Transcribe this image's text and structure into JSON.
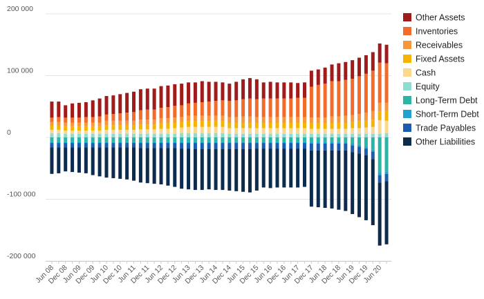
{
  "chart_data": {
    "type": "bar",
    "stacked": true,
    "title": "",
    "xlabel": "",
    "ylabel": "",
    "ylim": [
      -200000,
      200000
    ],
    "yticks": [
      200000,
      100000,
      0,
      -100000,
      -200000
    ],
    "ytick_labels": [
      "200 000",
      "100 000",
      "0",
      "-100 000",
      "-200 000"
    ],
    "grid": "horizontal",
    "legend_position": "right",
    "xtick_labels": [
      "Jun 08",
      "Dec 08",
      "Jun 09",
      "Dec 09",
      "Jun 10",
      "Dec 10",
      "Jun 11",
      "Dec 11",
      "Jun 12",
      "Dec 12",
      "Jun 13",
      "Dec 13",
      "Jun 14",
      "Dec 14",
      "Jun 15",
      "Dec 15",
      "Jun 16",
      "Dec 16",
      "Jun 17",
      "Dec 17",
      "Jun 18",
      "Dec 18",
      "Jun 19",
      "Dec 19",
      "Jun 20"
    ],
    "categories": [
      "Jun 08",
      "Sep 08",
      "Dec 08",
      "Mar 09",
      "Jun 09",
      "Sep 09",
      "Dec 09",
      "Mar 10",
      "Jun 10",
      "Sep 10",
      "Dec 10",
      "Mar 11",
      "Jun 11",
      "Sep 11",
      "Dec 11",
      "Mar 12",
      "Jun 12",
      "Sep 12",
      "Dec 12",
      "Mar 13",
      "Jun 13",
      "Sep 13",
      "Dec 13",
      "Mar 14",
      "Jun 14",
      "Sep 14",
      "Dec 14",
      "Mar 15",
      "Jun 15",
      "Sep 15",
      "Dec 15",
      "Mar 16",
      "Jun 16",
      "Sep 16",
      "Dec 16",
      "Mar 17",
      "Jun 17",
      "Sep 17",
      "Dec 17",
      "Mar 18",
      "Jun 18",
      "Sep 18",
      "Dec 18",
      "Mar 19",
      "Jun 19",
      "Sep 19",
      "Dec 19",
      "Mar 20",
      "Jun 20",
      "Sep 20"
    ],
    "series": [
      {
        "name": "Other Assets",
        "color": "#a01c1c",
        "values": [
          26000,
          25000,
          20000,
          23000,
          24000,
          24000,
          27000,
          29000,
          30000,
          30000,
          31000,
          32000,
          33000,
          34000,
          34000,
          34000,
          35000,
          35000,
          35000,
          35000,
          34000,
          33000,
          34000,
          32000,
          31000,
          29000,
          28000,
          30000,
          32000,
          33000,
          32000,
          26000,
          27000,
          26000,
          26000,
          26000,
          24000,
          25000,
          26000,
          25000,
          26000,
          27000,
          29000,
          29000,
          30000,
          30000,
          30000,
          30000,
          31000,
          30000
        ]
      },
      {
        "name": "Inventories",
        "color": "#f26b2a",
        "values": [
          7000,
          8000,
          8000,
          8000,
          8000,
          9000,
          9000,
          10000,
          10000,
          11000,
          12000,
          13000,
          14000,
          15000,
          16000,
          16000,
          17000,
          18000,
          19000,
          19000,
          20000,
          21000,
          22000,
          23000,
          24000,
          25000,
          26000,
          27000,
          28000,
          29000,
          29000,
          30000,
          30000,
          30000,
          30000,
          30000,
          31000,
          31000,
          50000,
          53000,
          55000,
          57000,
          57000,
          58000,
          59000,
          61000,
          63000,
          65000,
          65000,
          64000
        ]
      },
      {
        "name": "Receivables",
        "color": "#f7963b",
        "values": [
          6000,
          6000,
          6000,
          6000,
          6000,
          6000,
          6000,
          6000,
          7000,
          7000,
          7000,
          7000,
          7000,
          8000,
          8000,
          8000,
          8000,
          8000,
          8000,
          8000,
          9000,
          9000,
          9000,
          9000,
          9000,
          9000,
          9000,
          9000,
          10000,
          10000,
          9000,
          9000,
          9000,
          9000,
          9000,
          9000,
          9000,
          9000,
          9000,
          9000,
          9000,
          10000,
          10000,
          11000,
          11000,
          12000,
          13000,
          14000,
          14000,
          13000
        ]
      },
      {
        "name": "Fixed Assets",
        "color": "#f5b400",
        "values": [
          7000,
          7000,
          7000,
          7000,
          7000,
          7000,
          7000,
          7000,
          8000,
          8000,
          8000,
          8000,
          8000,
          8000,
          8000,
          8000,
          9000,
          9000,
          9000,
          9000,
          9000,
          9000,
          9000,
          9000,
          9000,
          9000,
          9000,
          9000,
          9000,
          9000,
          9000,
          9000,
          9000,
          9000,
          9000,
          9000,
          9000,
          9000,
          9000,
          9000,
          9000,
          10000,
          10000,
          10000,
          10000,
          11000,
          11000,
          12000,
          14000,
          16000
        ]
      },
      {
        "name": "Cash",
        "color": "#fcd88e",
        "values": [
          5000,
          5000,
          5000,
          5000,
          5000,
          5000,
          5000,
          5000,
          6000,
          6000,
          6000,
          6000,
          6000,
          7000,
          7000,
          7000,
          8000,
          8000,
          9000,
          9000,
          10000,
          10000,
          10000,
          10000,
          10000,
          10000,
          9000,
          9000,
          9000,
          9000,
          9000,
          9000,
          9000,
          9000,
          9000,
          9000,
          9000,
          9000,
          8000,
          8000,
          8000,
          8000,
          8000,
          8000,
          9000,
          9000,
          10000,
          11000,
          22000,
          20000
        ]
      },
      {
        "name": "Equity",
        "color": "#8fdcd3",
        "values": [
          7000,
          7000,
          6000,
          6000,
          6000,
          6000,
          6000,
          6000,
          6000,
          6000,
          6000,
          6000,
          6000,
          6000,
          6000,
          6000,
          6000,
          6000,
          6000,
          7000,
          7000,
          7000,
          7000,
          7000,
          7000,
          7000,
          6000,
          6000,
          6000,
          6000,
          6000,
          6000,
          6000,
          6000,
          6000,
          6000,
          6000,
          6000,
          6000,
          6000,
          6000,
          6000,
          6000,
          6000,
          6000,
          6000,
          6000,
          6000,
          6000,
          7000
        ]
      },
      {
        "name": "Long-Term Debt",
        "color": "#2bb5a6",
        "values": [
          -7000,
          -7000,
          -7000,
          -7000,
          -7000,
          -7000,
          -7000,
          -7000,
          -7000,
          -7000,
          -7000,
          -7000,
          -7000,
          -7000,
          -7000,
          -7000,
          -7000,
          -7000,
          -7000,
          -7000,
          -7000,
          -7000,
          -7000,
          -7000,
          -7000,
          -7000,
          -7000,
          -7000,
          -7000,
          -7000,
          -7000,
          -7000,
          -7000,
          -7000,
          -7000,
          -7000,
          -7000,
          -7000,
          -7000,
          -7000,
          -7000,
          -7000,
          -7000,
          -7000,
          -10000,
          -12000,
          -15000,
          -20000,
          -57000,
          -55000
        ]
      },
      {
        "name": "Short-Term Debt",
        "color": "#1fa3cc",
        "values": [
          -2000,
          -2000,
          -2000,
          -2000,
          -2000,
          -2000,
          -2000,
          -2000,
          -2000,
          -2000,
          -2000,
          -2000,
          -2000,
          -2000,
          -2000,
          -2000,
          -2000,
          -2000,
          -2000,
          -2000,
          -2000,
          -2000,
          -2000,
          -2000,
          -2000,
          -2000,
          -2000,
          -2000,
          -2000,
          -2000,
          -2000,
          -2000,
          -2000,
          -2000,
          -2000,
          -2000,
          -2000,
          -2000,
          -3000,
          -3000,
          -3000,
          -3000,
          -3000,
          -3000,
          -3000,
          -3000,
          -3000,
          -3000,
          -4000,
          -4000
        ]
      },
      {
        "name": "Trade Payables",
        "color": "#1a5cb0",
        "values": [
          -7000,
          -7000,
          -7000,
          -7000,
          -7000,
          -7000,
          -7000,
          -7000,
          -7000,
          -7000,
          -7000,
          -7000,
          -7000,
          -8000,
          -8000,
          -8000,
          -8000,
          -8000,
          -8000,
          -9000,
          -9000,
          -10000,
          -10000,
          -10000,
          -10000,
          -10000,
          -10000,
          -10000,
          -10000,
          -10000,
          -9000,
          -9000,
          -9000,
          -9000,
          -9000,
          -9000,
          -9000,
          -9000,
          -11000,
          -11000,
          -11000,
          -11000,
          -11000,
          -11000,
          -11000,
          -11000,
          -11000,
          -12000,
          -12000,
          -12000
        ]
      },
      {
        "name": "Other Liabilities",
        "color": "#0d2b4d",
        "values": [
          -43000,
          -42000,
          -39000,
          -40000,
          -41000,
          -42000,
          -45000,
          -47000,
          -49000,
          -50000,
          -51000,
          -52000,
          -54000,
          -56000,
          -57000,
          -58000,
          -59000,
          -61000,
          -63000,
          -65000,
          -66000,
          -66000,
          -66000,
          -65000,
          -66000,
          -66000,
          -67000,
          -68000,
          -69000,
          -70000,
          -68000,
          -63000,
          -64000,
          -63000,
          -63000,
          -63000,
          -63000,
          -62000,
          -91000,
          -92000,
          -93000,
          -94000,
          -96000,
          -98000,
          -100000,
          -103000,
          -105000,
          -107000,
          -102000,
          -102000
        ]
      }
    ]
  }
}
